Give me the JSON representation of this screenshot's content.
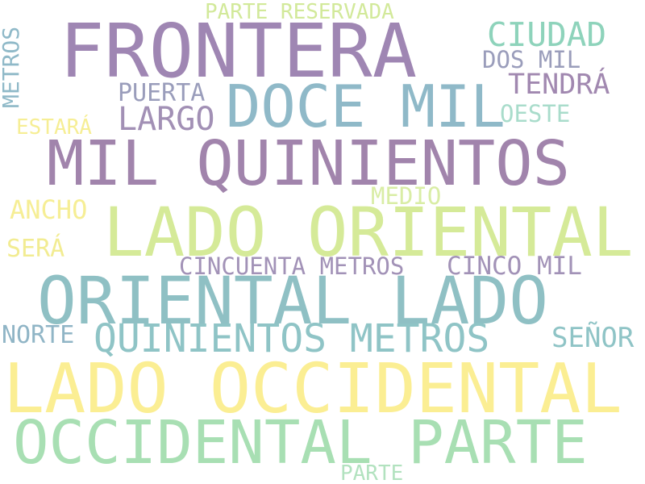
{
  "words": [
    {
      "id": "w1",
      "text": "FRONTERA",
      "color": "#9f86b3"
    },
    {
      "id": "w2",
      "text": "PARTE RESERVADA",
      "color": "#d2e99a"
    },
    {
      "id": "w3",
      "text": "METROS",
      "color": "#8fb9c8"
    },
    {
      "id": "w4",
      "text": "CIUDAD",
      "color": "#8ed3bb"
    },
    {
      "id": "w5",
      "text": "DOS MIL",
      "color": "#9a9dbb"
    },
    {
      "id": "w6",
      "text": "TENDRÁ",
      "color": "#a188b0"
    },
    {
      "id": "w7",
      "text": "PUERTA",
      "color": "#9a9dbb"
    },
    {
      "id": "w8",
      "text": "DOCE MIL",
      "color": "#8fb9c8"
    },
    {
      "id": "w9",
      "text": "LARGO",
      "color": "#a290b5"
    },
    {
      "id": "w10",
      "text": "OESTE",
      "color": "#a9dccb"
    },
    {
      "id": "w11",
      "text": "ESTARÁ",
      "color": "#f6ee95"
    },
    {
      "id": "w12",
      "text": "MIL QUINIENTOS",
      "color": "#a184ac"
    },
    {
      "id": "w13",
      "text": "MEDIO",
      "color": "#d9eda5"
    },
    {
      "id": "w14",
      "text": "ANCHO",
      "color": "#f6ee95"
    },
    {
      "id": "w15",
      "text": "LADO ORIENTAL",
      "color": "#d5ea98"
    },
    {
      "id": "w16",
      "text": "SERÁ",
      "color": "#f2ec92"
    },
    {
      "id": "w17",
      "text": "CINCUENTA METROS",
      "color": "#a292b7"
    },
    {
      "id": "w18",
      "text": "CINCO MIL",
      "color": "#a292b7"
    },
    {
      "id": "w19",
      "text": "ORIENTAL LADO",
      "color": "#8fc0c4"
    },
    {
      "id": "w20",
      "text": "NORTE",
      "color": "#90b5c6"
    },
    {
      "id": "w21",
      "text": "QUINIENTOS METROS",
      "color": "#8fc4c6"
    },
    {
      "id": "w22",
      "text": "SEÑOR",
      "color": "#8fc4c6"
    },
    {
      "id": "w23",
      "text": "LADO OCCIDENTAL",
      "color": "#fbee93"
    },
    {
      "id": "w24",
      "text": "OCCIDENTAL PARTE",
      "color": "#a8dfb3"
    },
    {
      "id": "w25",
      "text": "PARTE",
      "color": "#b2e2bf"
    }
  ]
}
